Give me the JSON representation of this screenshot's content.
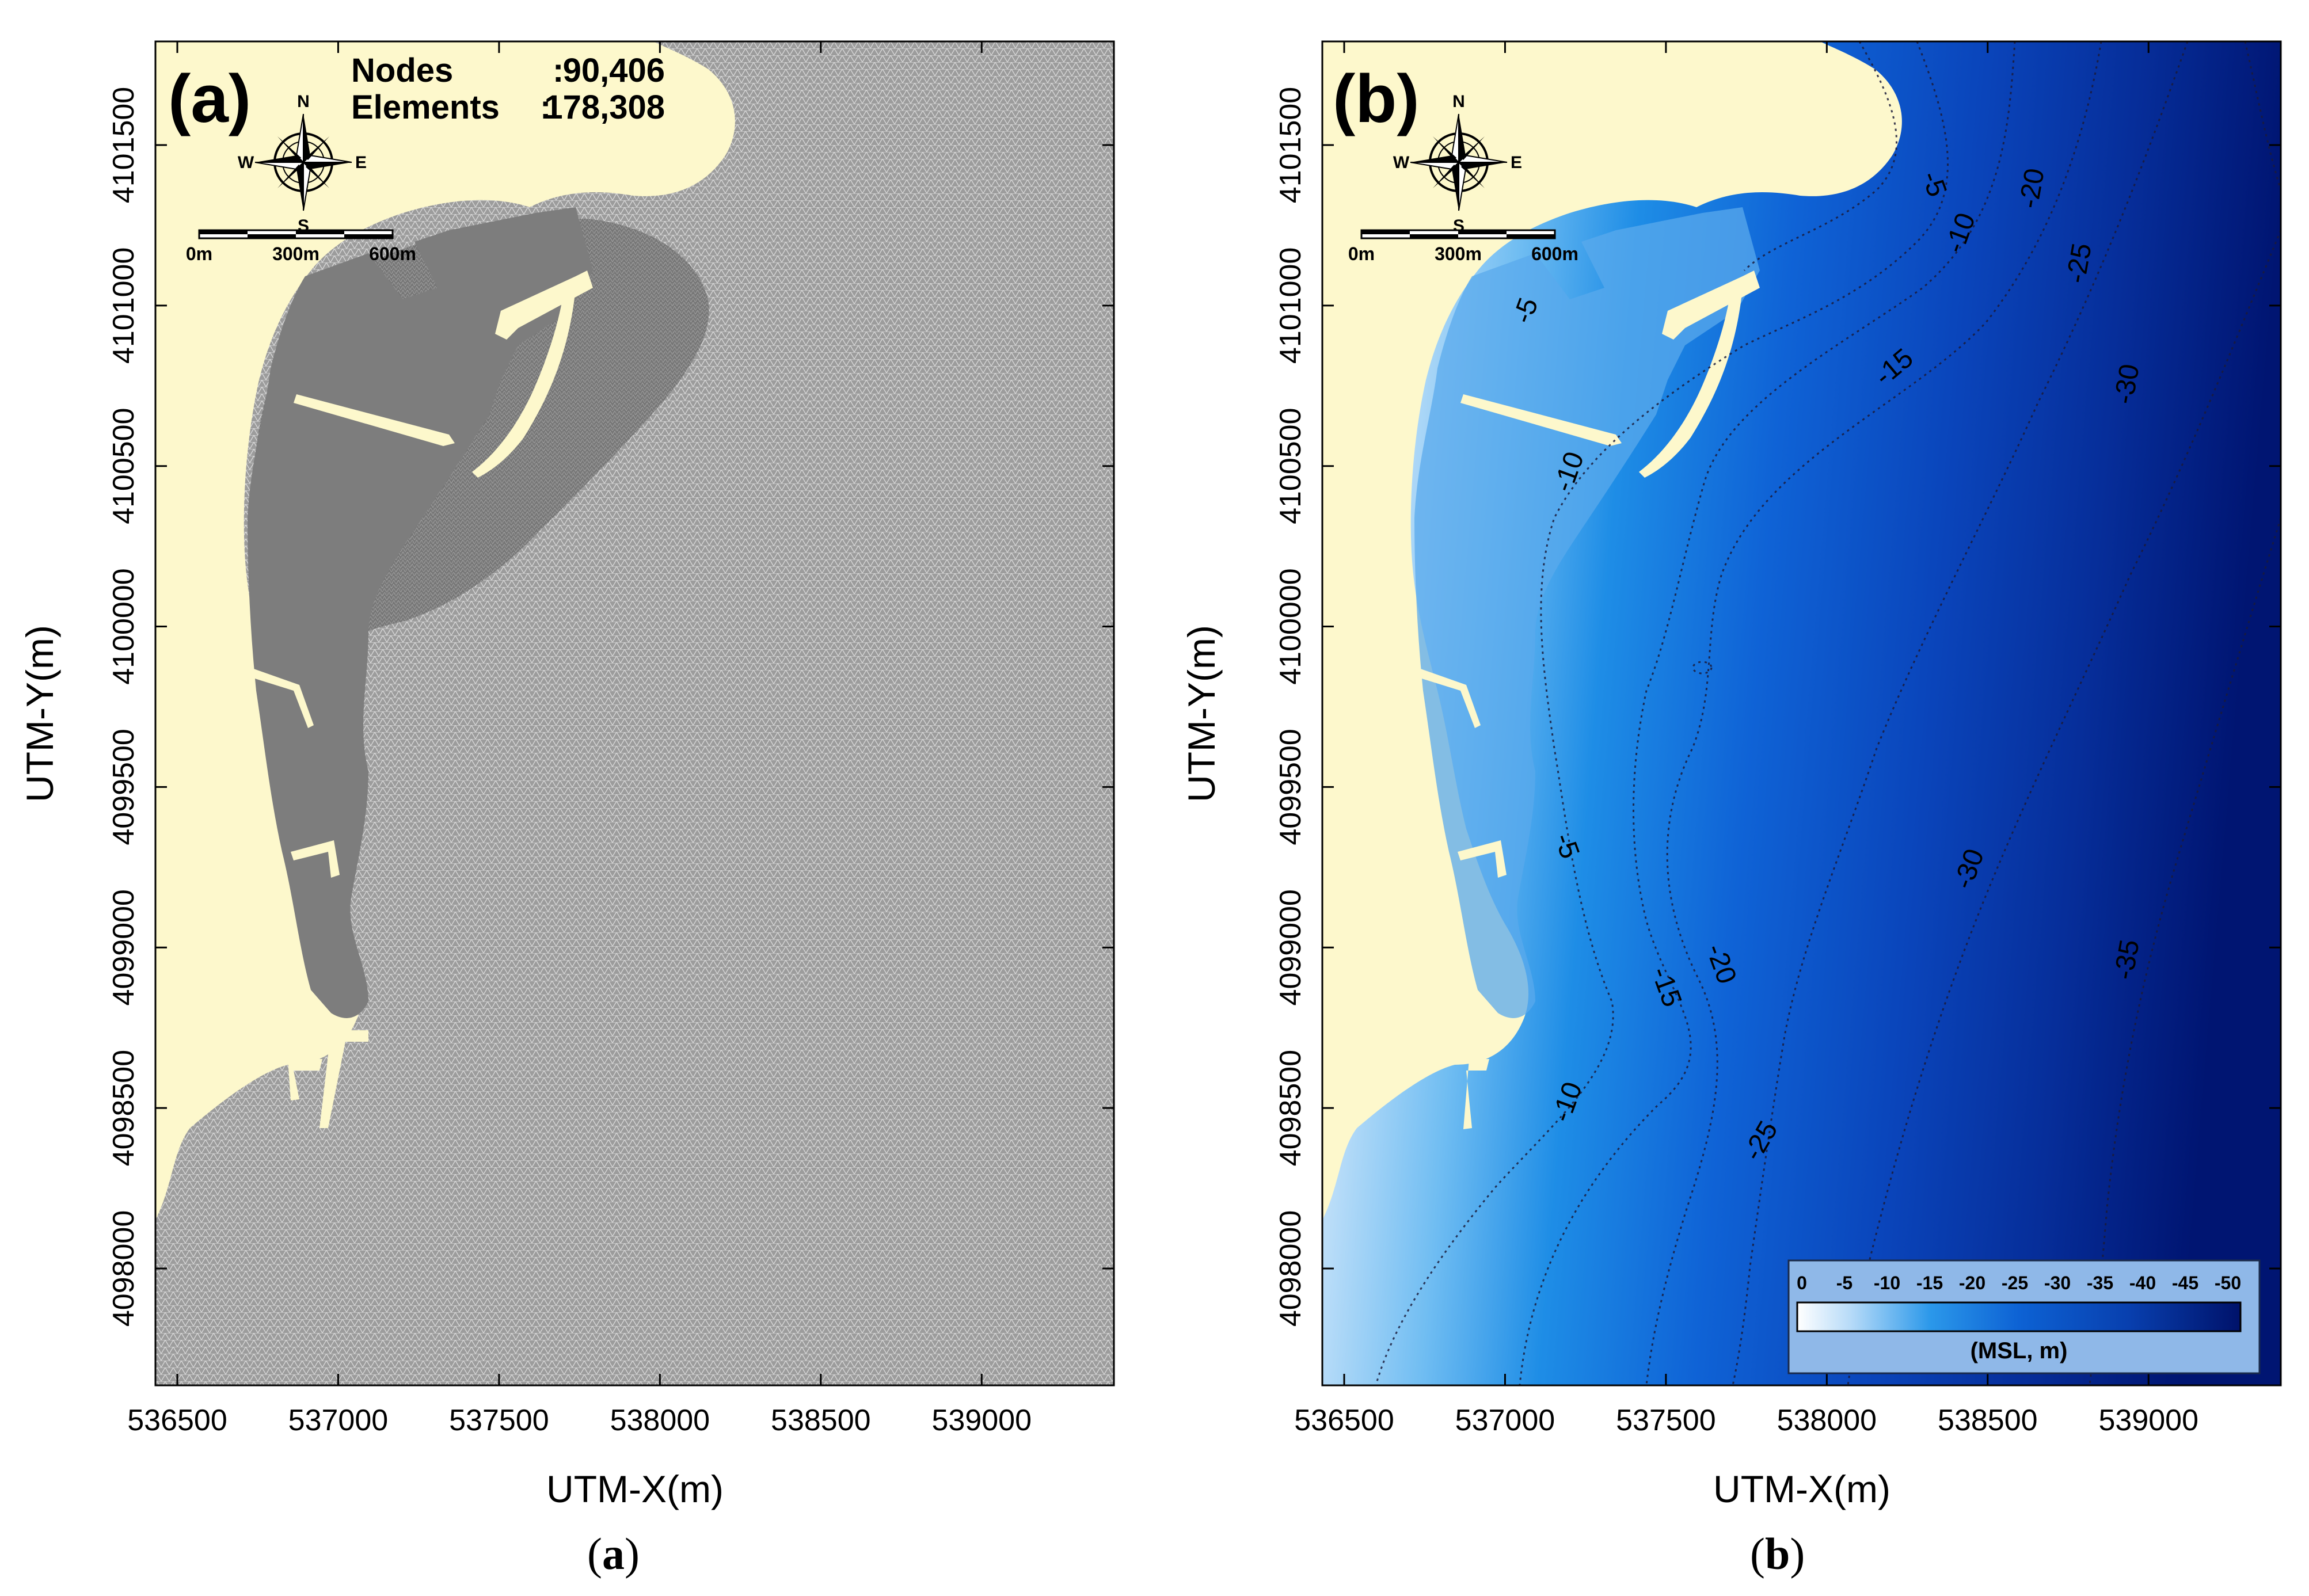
{
  "panels": [
    {
      "id": "a",
      "panel_label": "(a)",
      "caption_open": "(",
      "caption_letter": "a",
      "caption_close": ")",
      "mesh_info": {
        "nodes_label": "Nodes",
        "nodes_sep": ":",
        "nodes_value": "90,406",
        "elements_label": "Elements",
        "elements_sep": ":",
        "elements_value": "178,308"
      },
      "xlabel": "UTM-X(m)",
      "ylabel": "UTM-Y(m)"
    },
    {
      "id": "b",
      "panel_label": "(b)",
      "caption_open": "(",
      "caption_letter": "b",
      "caption_close": ")",
      "xlabel": "UTM-X(m)",
      "ylabel": "UTM-Y(m)",
      "contour_labels": [
        "-5",
        "-5",
        "-5",
        "-10",
        "-10",
        "-10",
        "-15",
        "-15",
        "-20",
        "-20",
        "-25",
        "-25",
        "-30",
        "-30",
        "-35"
      ],
      "colorbar": {
        "ticks": [
          "0",
          "-5",
          "-10",
          "-15",
          "-20",
          "-25",
          "-30",
          "-35",
          "-40",
          "-45",
          "-50"
        ],
        "unit_label": "(MSL, m)"
      }
    }
  ],
  "compass": {
    "n": "N",
    "s": "S",
    "e": "E",
    "w": "W"
  },
  "scale_bar": {
    "labels": [
      "0m",
      "300m",
      "600m"
    ]
  },
  "axes": {
    "x_ticks": [
      "536500",
      "537000",
      "537500",
      "538000",
      "538500",
      "539000"
    ],
    "y_ticks": [
      "4101500",
      "4101000",
      "4100500",
      "4100000",
      "4099500",
      "4099000",
      "4098500",
      "4098000"
    ]
  },
  "colors": {
    "land": "#fdf8cc",
    "mesh": "#8a8a8a",
    "mesh_dense": "#6e6e6e",
    "shallow": "#e6f1fb",
    "deep": "#00177a",
    "accent_blue": "#1e6ee6"
  }
}
